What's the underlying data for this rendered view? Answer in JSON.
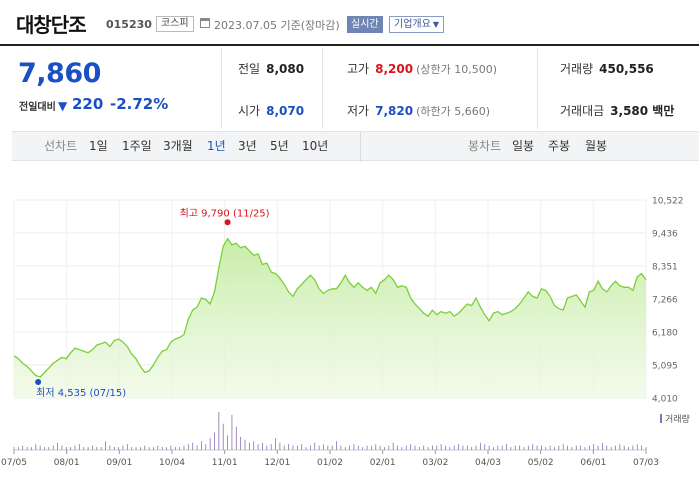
{
  "header": {
    "stock_name": "대창단조",
    "stock_code": "015230",
    "market": "코스피",
    "datetime": "2023.07.05 기준(장마감)",
    "realtime": "실시간",
    "company_info": "기업개요"
  },
  "quote": {
    "price": "7,860",
    "change_label": "전일대비",
    "change_arrow": "▼",
    "change": "220",
    "change_pct": "-2.72%"
  },
  "stats": {
    "prev_close": {
      "label": "전일",
      "value": "8,080"
    },
    "high": {
      "label": "고가",
      "value": "8,200",
      "sub": "(상한가 10,500)"
    },
    "volume": {
      "label": "거래량",
      "value": "450,556"
    },
    "open": {
      "label": "시가",
      "value": "8,070"
    },
    "low": {
      "label": "저가",
      "value": "7,820",
      "sub": "(하한가 5,660)"
    },
    "amount": {
      "label": "거래대금",
      "value": "3,580 백만"
    }
  },
  "tabs": {
    "line_label": "선차트",
    "line_items": [
      "1일",
      "1주일",
      "3개월",
      "1년",
      "3년",
      "5년",
      "10년"
    ],
    "selected": "1년",
    "candle_label": "봉차트",
    "candle_items": [
      "일봉",
      "주봉",
      "월봉"
    ]
  },
  "colors": {
    "accent_blue": "#1b4fc4",
    "accent_red": "#d8141e",
    "line_green": "#7bcf3a",
    "volume_bar": "#8c6fb3"
  },
  "chart_data": {
    "type": "area",
    "y_ticks": [
      "10,522",
      "9,436",
      "8,351",
      "7,266",
      "6,180",
      "5,095",
      "4,010"
    ],
    "ylim": [
      4010,
      10522
    ],
    "x_ticks": [
      "07/05",
      "08/01",
      "09/01",
      "10/04",
      "11/01",
      "12/01",
      "01/02",
      "02/01",
      "03/02",
      "04/03",
      "05/02",
      "06/01",
      "07/03"
    ],
    "grid": true,
    "max_annotation": "최고 9,790 (11/25)",
    "min_annotation": "최저 4,535 (07/15)",
    "volume_label": "거래량",
    "series": [
      {
        "values": [
          5400,
          5300,
          5150,
          5050,
          4900,
          4750,
          4700,
          4850,
          5000,
          5150,
          5250,
          5350,
          5300,
          5500,
          5650,
          5600,
          5550,
          5500,
          5600,
          5750,
          5800,
          5850,
          5700,
          5900,
          5950,
          5850,
          5700,
          5450,
          5300,
          5050,
          4850,
          4900,
          5100,
          5350,
          5550,
          5600,
          5850,
          5950,
          6000,
          6100,
          6600,
          6900,
          7000,
          7300,
          7250,
          7100,
          7500,
          8300,
          9000,
          9250,
          9050,
          9100,
          8950,
          9000,
          8850,
          8700,
          8750,
          8400,
          8450,
          8150,
          8100,
          7950,
          7750,
          7500,
          7350,
          7600,
          7750,
          7900,
          8050,
          7900,
          7600,
          7450,
          7550,
          7600,
          7600,
          7800,
          8050,
          7800,
          7650,
          7800,
          7650,
          7550,
          7650,
          7450,
          7800,
          7900,
          8050,
          7900,
          7650,
          7700,
          7650,
          7300,
          7100,
          6950,
          6800,
          6700,
          6900,
          6750,
          6850,
          6800,
          6850,
          6700,
          6800,
          6950,
          7100,
          7050,
          7300,
          7000,
          6750,
          6550,
          6800,
          6850,
          6750,
          6800,
          6850,
          6950,
          7100,
          7300,
          7500,
          7350,
          7300,
          7600,
          7550,
          7350,
          7050,
          6950,
          6900,
          7300,
          7350,
          7400,
          7200,
          7000,
          7500,
          7550,
          7850,
          7600,
          7500,
          7700,
          7850,
          7700,
          7650,
          7650,
          7550,
          8000,
          8100,
          7900
        ]
      }
    ],
    "volume": [
      2,
      2,
      3,
      2,
      2,
      4,
      3,
      2,
      2,
      3,
      5,
      3,
      2,
      2,
      3,
      4,
      2,
      2,
      3,
      2,
      2,
      6,
      3,
      2,
      2,
      3,
      4,
      2,
      2,
      2,
      3,
      2,
      2,
      3,
      2,
      2,
      3,
      2,
      2,
      3,
      4,
      5,
      3,
      6,
      4,
      8,
      12,
      26,
      18,
      10,
      24,
      16,
      9,
      7,
      5,
      6,
      4,
      5,
      3,
      4,
      8,
      5,
      3,
      4,
      3,
      3,
      4,
      2,
      3,
      5,
      3,
      4,
      3,
      3,
      6,
      3,
      2,
      3,
      4,
      3,
      2,
      3,
      3,
      4,
      3,
      2,
      3,
      5,
      3,
      2,
      3,
      4,
      3,
      2,
      3,
      2,
      3,
      3,
      4,
      3,
      2,
      3,
      4,
      3,
      3,
      2,
      3,
      5,
      4,
      3,
      2,
      3,
      3,
      4,
      2,
      3,
      3,
      2,
      3,
      4,
      3,
      3,
      2,
      3,
      2,
      3,
      4,
      3,
      2,
      3,
      3,
      2,
      3,
      4,
      3,
      5,
      3,
      2,
      3,
      4,
      3,
      2,
      3,
      4,
      3,
      2
    ]
  }
}
